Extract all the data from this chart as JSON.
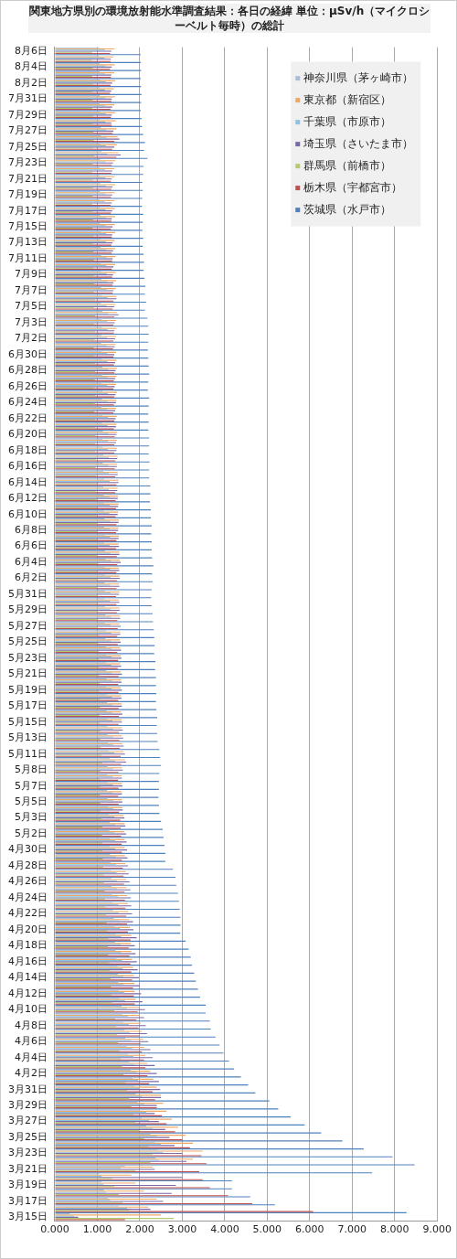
{
  "chart_data": {
    "type": "bar",
    "orientation": "horizontal",
    "title": "関東地方県別の環境放射能水準調査結果：各日の経緯 単位：μSv/h（マイクロシーベルト毎時）の総計",
    "categories": [
      "8月6日",
      null,
      "8月4日",
      null,
      "8月2日",
      null,
      "7月31日",
      null,
      "7月29日",
      null,
      "7月27日",
      null,
      "7月25日",
      null,
      "7月23日",
      null,
      "7月21日",
      null,
      "7月19日",
      null,
      "7月17日",
      null,
      "7月15日",
      null,
      "7月13日",
      null,
      "7月11日",
      null,
      "7月9日",
      null,
      "7月7日",
      null,
      "7月5日",
      null,
      "7月3日",
      null,
      "7月2日",
      null,
      "6月30日",
      null,
      "6月28日",
      null,
      "6月26日",
      null,
      "6月24日",
      null,
      "6月22日",
      null,
      "6月20日",
      null,
      "6月18日",
      null,
      "6月16日",
      null,
      "6月14日",
      null,
      "6月12日",
      null,
      "6月10日",
      null,
      "6月8日",
      null,
      "6月6日",
      null,
      "6月4日",
      null,
      "6月2日",
      null,
      "5月31日",
      null,
      "5月29日",
      null,
      "5月27日",
      null,
      "5月25日",
      null,
      "5月23日",
      null,
      "5月21日",
      null,
      "5月19日",
      null,
      "5月17日",
      null,
      "5月15日",
      null,
      "5月13日",
      null,
      "5月11日",
      null,
      "5月8日",
      null,
      "5月7日",
      null,
      "5月5日",
      null,
      "5月3日",
      null,
      "5月2日",
      null,
      "4月30日",
      null,
      "4月28日",
      null,
      "4月26日",
      null,
      "4月24日",
      null,
      "4月22日",
      null,
      "4月20日",
      null,
      "4月18日",
      null,
      "4月16日",
      null,
      "4月14日",
      null,
      "4月12日",
      null,
      "4月10日",
      null,
      "4月8日",
      null,
      "4月6日",
      null,
      "4月4日",
      null,
      "4月2日",
      null,
      "3月31日",
      null,
      "3月29日",
      null,
      "3月27日",
      null,
      "3月25日",
      null,
      "3月23日",
      null,
      "3月21日",
      null,
      "3月19日",
      null,
      "3月17日",
      null,
      "3月15日"
    ],
    "series": [
      {
        "name": "神奈川県（茅ヶ崎市）",
        "color": "#a8bedc",
        "values": [
          1.05,
          1.04,
          1.06,
          1.05,
          1.07,
          1.05,
          1.06,
          1.05,
          1.07,
          1.06,
          1.08,
          1.09,
          1.07,
          1.1,
          1.06,
          1.05,
          1.06,
          1.07,
          1.06,
          1.05,
          1.06,
          1.07,
          1.06,
          1.08,
          1.07,
          1.08,
          1.09,
          1.08,
          1.09,
          1.1,
          1.09,
          1.11,
          1.09,
          1.12,
          1.1,
          1.11,
          1.1,
          1.09,
          1.1,
          1.11,
          1.12,
          1.11,
          1.1,
          1.12,
          1.11,
          1.1,
          1.12,
          1.11,
          1.13,
          1.12,
          1.12,
          1.14,
          1.13,
          1.14,
          1.16,
          1.14,
          1.15,
          1.16,
          1.15,
          1.17,
          1.16,
          1.17,
          1.16,
          1.18,
          1.19,
          1.17,
          1.18,
          1.17,
          1.18,
          1.17,
          1.18,
          1.19,
          1.18,
          1.2,
          1.19,
          1.2,
          1.21,
          1.2,
          1.21,
          1.22,
          1.21,
          1.22,
          1.23,
          1.22,
          1.23,
          1.24,
          1.24,
          1.25,
          1.27,
          1.29,
          1.24,
          1.23,
          1.24,
          1.23,
          1.24,
          1.25,
          1.27,
          1.29,
          1.28,
          1.29,
          1.29,
          1.3,
          1.31,
          1.32,
          1.33,
          1.34,
          1.35,
          1.36,
          1.37,
          1.39,
          1.4,
          1.43,
          1.42,
          1.43,
          1.45,
          1.47,
          1.48,
          1.49,
          1.5,
          1.52,
          1.57,
          1.59,
          1.61,
          1.63,
          1.66,
          1.69,
          1.72,
          1.75,
          1.79,
          1.83,
          1.87,
          1.9,
          1.95,
          2.0,
          2.05,
          2.15,
          2.25,
          2.35,
          2.42,
          2.38,
          1.65,
          1.05,
          1.1,
          1.15,
          1.25,
          1.5,
          0.35
        ]
      },
      {
        "name": "東京都（新宿区）",
        "color": "#f0a860",
        "values": [
          1.4,
          1.38,
          1.41,
          1.4,
          1.42,
          1.39,
          1.41,
          1.4,
          1.42,
          1.43,
          1.45,
          1.48,
          1.46,
          1.5,
          1.42,
          1.4,
          1.41,
          1.42,
          1.41,
          1.4,
          1.41,
          1.42,
          1.41,
          1.42,
          1.41,
          1.42,
          1.43,
          1.42,
          1.43,
          1.44,
          1.43,
          1.45,
          1.43,
          1.46,
          1.44,
          1.45,
          1.44,
          1.43,
          1.44,
          1.45,
          1.46,
          1.45,
          1.44,
          1.46,
          1.45,
          1.44,
          1.46,
          1.45,
          1.47,
          1.46,
          1.46,
          1.48,
          1.47,
          1.48,
          1.5,
          1.48,
          1.49,
          1.5,
          1.49,
          1.51,
          1.5,
          1.51,
          1.5,
          1.52,
          1.53,
          1.51,
          1.52,
          1.51,
          1.52,
          1.51,
          1.52,
          1.53,
          1.52,
          1.54,
          1.53,
          1.54,
          1.55,
          1.54,
          1.55,
          1.56,
          1.55,
          1.56,
          1.57,
          1.56,
          1.57,
          1.58,
          1.58,
          1.59,
          1.62,
          1.65,
          1.58,
          1.57,
          1.58,
          1.57,
          1.58,
          1.59,
          1.62,
          1.64,
          1.63,
          1.64,
          1.64,
          1.65,
          1.66,
          1.67,
          1.68,
          1.69,
          1.7,
          1.72,
          1.73,
          1.75,
          1.77,
          1.8,
          1.79,
          1.8,
          1.82,
          1.84,
          1.86,
          1.87,
          1.88,
          1.9,
          1.98,
          2.0,
          2.02,
          2.05,
          2.08,
          2.1,
          2.13,
          2.18,
          2.25,
          2.32,
          2.4,
          2.5,
          2.55,
          2.63,
          2.75,
          2.9,
          3.08,
          3.25,
          3.48,
          3.25,
          2.3,
          1.8,
          1.9,
          2.1,
          2.4,
          2.2,
          2.5
        ]
      },
      {
        "name": "千葉県（市原市）",
        "color": "#8ac4e0",
        "values": [
          1.18,
          1.17,
          1.19,
          1.18,
          1.2,
          1.18,
          1.19,
          1.18,
          1.2,
          1.19,
          1.21,
          1.22,
          1.2,
          1.23,
          1.19,
          1.18,
          1.19,
          1.2,
          1.19,
          1.18,
          1.19,
          1.2,
          1.19,
          1.21,
          1.2,
          1.21,
          1.22,
          1.21,
          1.22,
          1.23,
          1.22,
          1.24,
          1.22,
          1.25,
          1.23,
          1.24,
          1.23,
          1.22,
          1.23,
          1.24,
          1.25,
          1.24,
          1.23,
          1.25,
          1.24,
          1.23,
          1.25,
          1.24,
          1.26,
          1.25,
          1.25,
          1.27,
          1.26,
          1.27,
          1.29,
          1.27,
          1.28,
          1.29,
          1.28,
          1.3,
          1.29,
          1.3,
          1.29,
          1.31,
          1.32,
          1.3,
          1.31,
          1.3,
          1.31,
          1.3,
          1.31,
          1.32,
          1.31,
          1.33,
          1.32,
          1.33,
          1.34,
          1.33,
          1.34,
          1.35,
          1.34,
          1.35,
          1.36,
          1.35,
          1.36,
          1.37,
          1.37,
          1.38,
          1.4,
          1.42,
          1.37,
          1.36,
          1.37,
          1.36,
          1.37,
          1.38,
          1.4,
          1.42,
          1.41,
          1.42,
          1.42,
          1.43,
          1.44,
          1.45,
          1.46,
          1.47,
          1.48,
          1.49,
          1.5,
          1.52,
          1.53,
          1.56,
          1.55,
          1.56,
          1.58,
          1.6,
          1.61,
          1.62,
          1.63,
          1.65,
          1.7,
          1.72,
          1.74,
          1.76,
          1.79,
          1.82,
          1.85,
          1.88,
          1.92,
          1.96,
          2.0,
          2.05,
          2.1,
          2.15,
          2.22,
          2.3,
          2.4,
          2.5,
          2.55,
          2.45,
          1.55,
          1.1,
          1.15,
          1.2,
          1.3,
          1.7,
          0.45
        ]
      },
      {
        "name": "埼玉県（さいたま市）",
        "color": "#7a68a8",
        "values": [
          1.33,
          1.32,
          1.34,
          1.33,
          1.35,
          1.33,
          1.34,
          1.35,
          1.34,
          1.33,
          1.38,
          1.52,
          1.4,
          1.55,
          1.37,
          1.35,
          1.34,
          1.36,
          1.35,
          1.34,
          1.35,
          1.34,
          1.36,
          1.35,
          1.36,
          1.37,
          1.36,
          1.38,
          1.37,
          1.38,
          1.38,
          1.45,
          1.4,
          1.5,
          1.41,
          1.4,
          1.42,
          1.41,
          1.4,
          1.42,
          1.43,
          1.42,
          1.41,
          1.43,
          1.44,
          1.42,
          1.43,
          1.44,
          1.45,
          1.44,
          1.45,
          1.47,
          1.46,
          1.48,
          1.5,
          1.47,
          1.48,
          1.49,
          1.48,
          1.5,
          1.49,
          1.5,
          1.51,
          1.52,
          1.55,
          1.52,
          1.53,
          1.52,
          1.51,
          1.52,
          1.53,
          1.54,
          1.55,
          1.54,
          1.55,
          1.56,
          1.57,
          1.56,
          1.58,
          1.57,
          1.58,
          1.57,
          1.58,
          1.59,
          1.58,
          1.6,
          1.61,
          1.62,
          1.65,
          1.68,
          1.6,
          1.58,
          1.59,
          1.58,
          1.59,
          1.6,
          1.64,
          1.66,
          1.68,
          1.69,
          1.7,
          1.71,
          1.72,
          1.74,
          1.76,
          1.78,
          1.79,
          1.8,
          1.82,
          1.84,
          1.85,
          1.93,
          1.88,
          1.9,
          1.93,
          1.95,
          1.98,
          2.0,
          2.03,
          2.06,
          2.12,
          2.1,
          2.14,
          2.17,
          2.2,
          2.25,
          2.3,
          2.35,
          2.4,
          2.45,
          2.48,
          2.5,
          2.4,
          2.35,
          2.45,
          2.6,
          2.7,
          2.82,
          3.0,
          3.1,
          2.35,
          3.0,
          2.85,
          2.75,
          2.55,
          2.25,
          0.55
        ]
      },
      {
        "name": "群馬県（前橋市）",
        "color": "#b5cc6e",
        "values": [
          0.88,
          0.87,
          0.89,
          0.88,
          0.9,
          0.88,
          0.89,
          0.88,
          0.9,
          0.89,
          0.91,
          0.92,
          0.9,
          0.93,
          0.89,
          0.88,
          0.89,
          0.9,
          0.89,
          0.88,
          0.89,
          0.9,
          0.89,
          0.91,
          0.9,
          0.91,
          0.92,
          0.91,
          0.92,
          0.93,
          0.92,
          0.94,
          0.92,
          0.95,
          0.93,
          0.94,
          0.93,
          0.92,
          0.93,
          0.94,
          0.95,
          0.94,
          0.93,
          0.95,
          0.94,
          0.93,
          0.95,
          0.94,
          0.96,
          0.95,
          0.95,
          0.97,
          0.96,
          0.97,
          0.99,
          0.97,
          0.98,
          0.99,
          0.98,
          1.0,
          0.99,
          1.0,
          0.99,
          1.01,
          1.02,
          1.0,
          1.01,
          1.0,
          1.01,
          1.0,
          1.01,
          1.02,
          1.01,
          1.03,
          1.02,
          1.03,
          1.04,
          1.03,
          1.04,
          1.05,
          1.04,
          1.05,
          1.06,
          1.05,
          1.06,
          1.07,
          1.07,
          1.08,
          1.1,
          1.12,
          1.07,
          1.06,
          1.07,
          1.06,
          1.07,
          1.08,
          1.1,
          1.12,
          1.11,
          1.12,
          1.12,
          1.13,
          1.14,
          1.15,
          1.16,
          1.17,
          1.18,
          1.19,
          1.2,
          1.22,
          1.23,
          1.26,
          1.25,
          1.26,
          1.28,
          1.3,
          1.31,
          1.32,
          1.33,
          1.35,
          1.4,
          1.42,
          1.44,
          1.46,
          1.49,
          1.52,
          1.55,
          1.58,
          1.62,
          1.66,
          1.7,
          1.75,
          1.8,
          1.85,
          1.9,
          2.0,
          2.1,
          2.2,
          2.3,
          2.25,
          1.9,
          1.35,
          1.4,
          1.5,
          1.6,
          1.75,
          2.8
        ]
      },
      {
        "name": "栃木県（宇都宮市）",
        "color": "#c0504d",
        "values": [
          1.3,
          1.31,
          1.3,
          1.32,
          1.31,
          1.3,
          1.33,
          1.31,
          1.32,
          1.34,
          1.36,
          1.4,
          1.35,
          1.45,
          1.34,
          1.33,
          1.32,
          1.33,
          1.32,
          1.31,
          1.32,
          1.33,
          1.32,
          1.34,
          1.33,
          1.34,
          1.35,
          1.34,
          1.35,
          1.36,
          1.36,
          1.38,
          1.36,
          1.4,
          1.38,
          1.39,
          1.38,
          1.37,
          1.38,
          1.39,
          1.4,
          1.39,
          1.38,
          1.4,
          1.39,
          1.38,
          1.4,
          1.39,
          1.41,
          1.4,
          1.4,
          1.42,
          1.41,
          1.42,
          1.45,
          1.42,
          1.43,
          1.44,
          1.43,
          1.45,
          1.44,
          1.45,
          1.44,
          1.46,
          1.47,
          1.45,
          1.46,
          1.45,
          1.44,
          1.45,
          1.46,
          1.47,
          1.48,
          1.47,
          1.48,
          1.47,
          1.49,
          1.48,
          1.5,
          1.49,
          1.5,
          1.49,
          1.5,
          1.51,
          1.5,
          1.51,
          1.52,
          1.53,
          1.55,
          1.56,
          1.5,
          1.49,
          1.5,
          1.49,
          1.5,
          1.51,
          1.54,
          1.55,
          1.56,
          1.57,
          1.58,
          1.58,
          1.6,
          1.62,
          1.63,
          1.64,
          1.65,
          1.66,
          1.68,
          1.7,
          1.72,
          1.78,
          1.74,
          1.76,
          1.78,
          1.8,
          1.82,
          1.84,
          1.86,
          1.88,
          1.95,
          1.92,
          1.97,
          1.99,
          2.02,
          2.05,
          2.1,
          2.13,
          2.18,
          2.22,
          2.3,
          2.36,
          2.4,
          2.52,
          2.63,
          2.83,
          3.0,
          3.18,
          3.45,
          3.57,
          3.4,
          3.48,
          3.65,
          4.08,
          4.65,
          6.08,
          1.65
        ]
      },
      {
        "name": "茨城県（水戸市）",
        "color": "#4f81bd",
        "values": [
          2.02,
          2.02,
          2.03,
          2.02,
          2.03,
          2.04,
          2.03,
          2.02,
          2.04,
          2.05,
          2.08,
          2.12,
          2.1,
          2.18,
          2.09,
          2.08,
          2.06,
          2.07,
          2.06,
          2.05,
          2.08,
          2.07,
          2.06,
          2.08,
          2.07,
          2.09,
          2.1,
          2.09,
          2.11,
          2.13,
          2.12,
          2.15,
          2.12,
          2.18,
          2.2,
          2.21,
          2.2,
          2.19,
          2.2,
          2.21,
          2.22,
          2.2,
          2.19,
          2.22,
          2.21,
          2.2,
          2.21,
          2.2,
          2.22,
          2.22,
          2.21,
          2.23,
          2.22,
          2.22,
          2.25,
          2.25,
          2.24,
          2.26,
          2.26,
          2.28,
          2.27,
          2.28,
          2.28,
          2.29,
          2.32,
          2.29,
          2.3,
          2.28,
          2.27,
          2.28,
          2.3,
          2.31,
          2.33,
          2.34,
          2.35,
          2.34,
          2.37,
          2.36,
          2.38,
          2.38,
          2.39,
          2.38,
          2.39,
          2.41,
          2.4,
          2.41,
          2.42,
          2.46,
          2.48,
          2.5,
          2.46,
          2.45,
          2.45,
          2.44,
          2.45,
          2.46,
          2.5,
          2.54,
          2.56,
          2.58,
          2.6,
          2.6,
          2.78,
          2.84,
          2.86,
          2.9,
          2.92,
          2.94,
          2.96,
          2.96,
          2.95,
          3.08,
          3.15,
          3.2,
          3.23,
          3.28,
          3.32,
          3.37,
          3.42,
          3.55,
          3.55,
          3.65,
          3.67,
          3.78,
          3.88,
          3.97,
          4.1,
          4.22,
          4.38,
          4.55,
          4.72,
          5.05,
          5.26,
          5.55,
          5.88,
          6.27,
          6.77,
          7.27,
          7.95,
          8.47,
          7.47,
          4.17,
          4.17,
          4.6,
          5.18,
          8.28,
          null
        ]
      }
    ],
    "xlim": [
      0,
      9
    ],
    "xticks": [
      {
        "value": 0,
        "label": "0.000"
      },
      {
        "value": 1,
        "label": "1.000"
      },
      {
        "value": 2,
        "label": "2.000"
      },
      {
        "value": 3,
        "label": "3.000"
      },
      {
        "value": 4,
        "label": "4.000"
      },
      {
        "value": 5,
        "label": "5.000"
      },
      {
        "value": 6,
        "label": "6.000"
      },
      {
        "value": 7,
        "label": "7.000"
      },
      {
        "value": 8,
        "label": "8.000"
      },
      {
        "value": 9,
        "label": "9.000"
      }
    ],
    "grid": "x",
    "legend": "top right"
  }
}
